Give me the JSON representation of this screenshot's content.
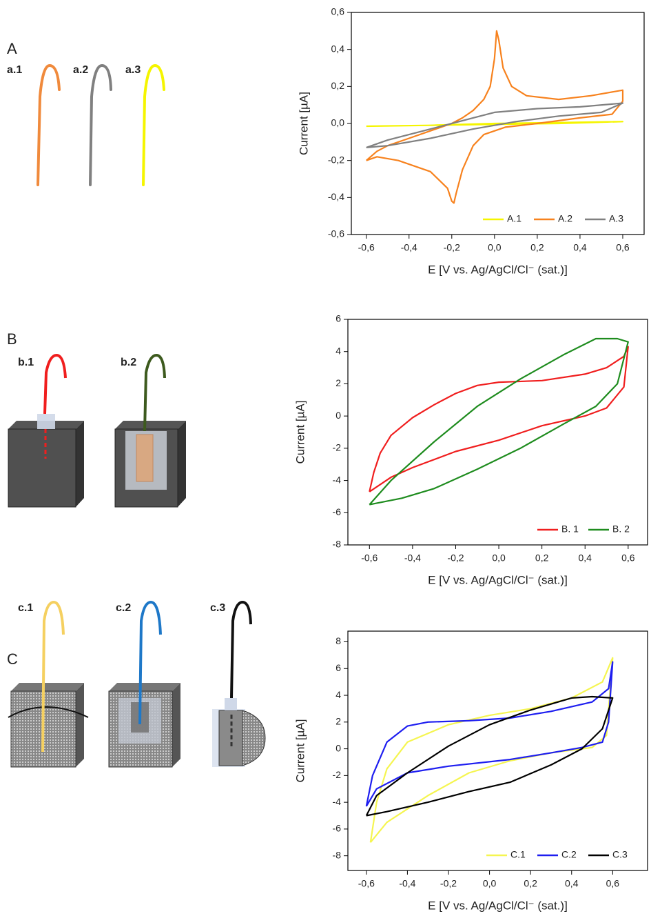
{
  "panels": [
    {
      "label": "A",
      "items": [
        "a.1",
        "a.2",
        "a.3"
      ]
    },
    {
      "label": "B",
      "items": [
        "b.1",
        "b.2"
      ]
    },
    {
      "label": "C",
      "items": [
        "c.1",
        "c.2",
        "c.3"
      ]
    }
  ],
  "chart_data": [
    {
      "type": "line",
      "x_label": "E [V vs. Ag/AgCl/Cl⁻ (sat.)]",
      "y_label": "Current [µA]",
      "xlim": [
        -0.67,
        0.7
      ],
      "ylim": [
        -0.6,
        0.6
      ],
      "xticks": [
        {
          "value": -0.6,
          "label": "-0,6"
        },
        {
          "value": -0.4,
          "label": "-0,4"
        },
        {
          "value": -0.2,
          "label": "-0,2"
        },
        {
          "value": 0,
          "label": "0,0"
        },
        {
          "value": 0.2,
          "label": "0,2"
        },
        {
          "value": 0.4,
          "label": "0,4"
        },
        {
          "value": 0.6,
          "label": "0,6"
        }
      ],
      "yticks": [
        {
          "value": -0.6,
          "label": "-0,6"
        },
        {
          "value": -0.4,
          "label": "-0,4"
        },
        {
          "value": -0.2,
          "label": "-0,2"
        },
        {
          "value": 0,
          "label": "0,0"
        },
        {
          "value": 0.2,
          "label": "0,2"
        },
        {
          "value": 0.4,
          "label": "0,4"
        },
        {
          "value": 0.6,
          "label": "0,6"
        }
      ],
      "grid": false,
      "legend": "lower right",
      "series": [
        {
          "name": "A.1",
          "color": "#f5f500",
          "x": [
            -0.6,
            -0.3,
            0,
            0.3,
            0.6,
            0.3,
            0,
            -0.3,
            -0.6
          ],
          "values": [
            -0.015,
            -0.01,
            -0.005,
            0,
            0.01,
            0.005,
            0,
            -0.01,
            -0.015
          ]
        },
        {
          "name": "A.2",
          "color": "#f7821e",
          "x": [
            -0.6,
            -0.55,
            -0.5,
            -0.4,
            -0.3,
            -0.2,
            -0.15,
            -0.1,
            -0.05,
            -0.02,
            0,
            0.01,
            0.02,
            0.04,
            0.08,
            0.15,
            0.3,
            0.45,
            0.6,
            0.6,
            0.55,
            0.4,
            0.2,
            0.05,
            -0.05,
            -0.1,
            -0.15,
            -0.18,
            -0.19,
            -0.2,
            -0.22,
            -0.3,
            -0.45,
            -0.55,
            -0.6
          ],
          "values": [
            -0.2,
            -0.15,
            -0.12,
            -0.08,
            -0.04,
            0,
            0.03,
            0.07,
            0.13,
            0.2,
            0.35,
            0.5,
            0.45,
            0.3,
            0.2,
            0.15,
            0.13,
            0.15,
            0.18,
            0.12,
            0.05,
            0.03,
            0,
            -0.02,
            -0.06,
            -0.12,
            -0.25,
            -0.38,
            -0.43,
            -0.42,
            -0.35,
            -0.26,
            -0.2,
            -0.18,
            -0.2
          ]
        },
        {
          "name": "A.3",
          "color": "#808080",
          "x": [
            -0.6,
            -0.5,
            -0.3,
            -0.1,
            0,
            0.2,
            0.4,
            0.6,
            0.5,
            0.3,
            0.1,
            -0.1,
            -0.3,
            -0.5,
            -0.6
          ],
          "values": [
            -0.13,
            -0.09,
            -0.03,
            0.03,
            0.06,
            0.08,
            0.09,
            0.11,
            0.06,
            0.04,
            0.01,
            -0.03,
            -0.08,
            -0.12,
            -0.13
          ]
        }
      ]
    },
    {
      "type": "line",
      "x_label": "E [V vs. Ag/AgCl/Cl⁻ (sat.)]",
      "y_label": "Current [µA]",
      "xlim": [
        -0.7,
        0.69
      ],
      "ylim": [
        -8,
        6
      ],
      "xticks": [
        {
          "value": -0.6,
          "label": "-0,6"
        },
        {
          "value": -0.4,
          "label": "-0,4"
        },
        {
          "value": -0.2,
          "label": "-0,2"
        },
        {
          "value": 0,
          "label": "0,0"
        },
        {
          "value": 0.2,
          "label": "0,2"
        },
        {
          "value": 0.4,
          "label": "0,4"
        },
        {
          "value": 0.6,
          "label": "0,6"
        }
      ],
      "yticks": [
        -8,
        -6,
        -4,
        -2,
        0,
        2,
        4,
        6
      ],
      "grid": false,
      "legend": "lower right",
      "series": [
        {
          "name": "B. 1",
          "color": "#f01e1e",
          "x": [
            -0.6,
            -0.58,
            -0.55,
            -0.5,
            -0.4,
            -0.3,
            -0.2,
            -0.1,
            0,
            0.2,
            0.4,
            0.5,
            0.58,
            0.6,
            0.58,
            0.5,
            0.4,
            0.2,
            0,
            -0.2,
            -0.4,
            -0.5,
            -0.6
          ],
          "values": [
            -4.7,
            -3.5,
            -2.3,
            -1.2,
            -0.1,
            0.7,
            1.4,
            1.9,
            2.1,
            2.2,
            2.6,
            3,
            3.7,
            4.3,
            1.8,
            0.5,
            0,
            -0.6,
            -1.5,
            -2.2,
            -3.2,
            -3.8,
            -4.7
          ]
        },
        {
          "name": "B. 2",
          "color": "#1e8c1e",
          "x": [
            -0.6,
            -0.5,
            -0.3,
            -0.1,
            0.1,
            0.3,
            0.45,
            0.55,
            0.6,
            0.55,
            0.45,
            0.3,
            0.1,
            -0.1,
            -0.3,
            -0.45,
            -0.6
          ],
          "values": [
            -5.5,
            -4,
            -1.6,
            0.6,
            2.3,
            3.8,
            4.8,
            4.8,
            4.6,
            2,
            0.6,
            -0.5,
            -2,
            -3.3,
            -4.5,
            -5.1,
            -5.5
          ]
        }
      ]
    },
    {
      "type": "line",
      "x_label": "E [V vs. Ag/AgCl/Cl⁻ (sat.)]",
      "y_label": "Current [µA]",
      "xlim": [
        -0.69,
        0.77
      ],
      "ylim": [
        -9.1,
        8.8
      ],
      "xticks": [
        {
          "value": -0.6,
          "label": "-0,6"
        },
        {
          "value": -0.4,
          "label": "-0,4"
        },
        {
          "value": -0.2,
          "label": "-0,2"
        },
        {
          "value": 0,
          "label": "0,0"
        },
        {
          "value": 0.2,
          "label": "0,2"
        },
        {
          "value": 0.4,
          "label": "0,4"
        },
        {
          "value": 0.6,
          "label": "0,6"
        }
      ],
      "yticks": [
        -8,
        -6,
        -4,
        -2,
        0,
        2,
        4,
        6,
        8
      ],
      "grid": false,
      "legend": "lower right",
      "series": [
        {
          "name": "C.1",
          "color": "#f5f550",
          "x": [
            -0.58,
            -0.55,
            -0.5,
            -0.4,
            -0.2,
            0,
            0.2,
            0.4,
            0.55,
            0.6,
            0.57,
            0.5,
            0.3,
            0.1,
            -0.1,
            -0.3,
            -0.5,
            -0.58
          ],
          "values": [
            -7,
            -4,
            -1.5,
            0.5,
            1.8,
            2.5,
            3,
            3.8,
            5,
            6.8,
            1,
            0.1,
            -0.3,
            -0.9,
            -1.8,
            -3.5,
            -5.5,
            -7
          ]
        },
        {
          "name": "C.2",
          "color": "#1e1ef0",
          "x": [
            -0.6,
            -0.57,
            -0.5,
            -0.4,
            -0.3,
            -0.1,
            0.1,
            0.3,
            0.5,
            0.58,
            0.6,
            0.58,
            0.55,
            0.45,
            0.3,
            0.1,
            -0.2,
            -0.4,
            -0.55,
            -0.6
          ],
          "values": [
            -4.3,
            -2,
            0.5,
            1.7,
            2,
            2.1,
            2.3,
            2.8,
            3.5,
            4.5,
            6.5,
            2,
            0.5,
            0.1,
            -0.3,
            -0.8,
            -1.3,
            -1.8,
            -3,
            -4.3
          ]
        },
        {
          "name": "C.3",
          "color": "#000000",
          "x": [
            -0.6,
            -0.55,
            -0.4,
            -0.2,
            0,
            0.2,
            0.4,
            0.5,
            0.6,
            0.55,
            0.45,
            0.3,
            0.1,
            -0.1,
            -0.3,
            -0.5,
            -0.6
          ],
          "values": [
            -5,
            -3.5,
            -1.8,
            0.2,
            1.8,
            2.9,
            3.8,
            3.9,
            3.8,
            1.5,
            0,
            -1.2,
            -2.5,
            -3.2,
            -4,
            -4.7,
            -5
          ]
        }
      ]
    }
  ]
}
